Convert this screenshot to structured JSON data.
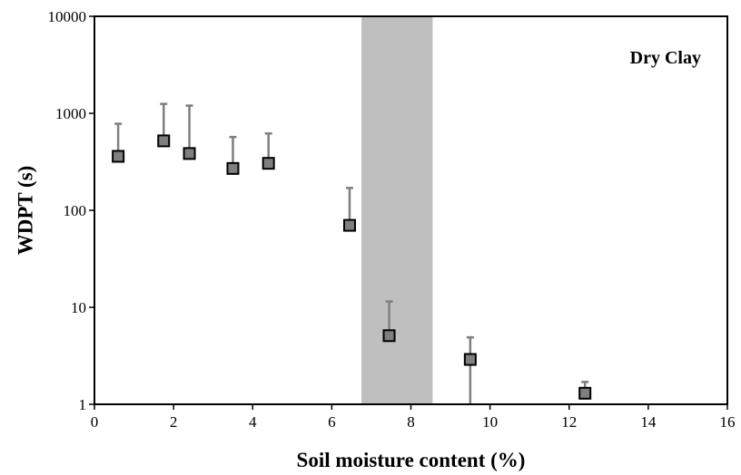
{
  "chart_data": {
    "type": "scatter",
    "title": "",
    "xlabel": "Soil moisture content (%)",
    "ylabel": "WDPT (s)",
    "xlim": [
      0,
      16
    ],
    "ylim": [
      1,
      10000
    ],
    "yscale": "log",
    "x_ticks": [
      0,
      2,
      4,
      6,
      8,
      10,
      12,
      14,
      16
    ],
    "x_tick_labels": [
      "0",
      "2",
      "4",
      "6",
      "8",
      "10",
      "12",
      "14",
      "16"
    ],
    "y_ticks": [
      1,
      10,
      100,
      1000,
      10000
    ],
    "y_tick_labels": [
      "1",
      "10",
      "100",
      "1000",
      "10000"
    ],
    "grid": false,
    "legend": false,
    "annotation": "Dry Clay",
    "shaded_region": {
      "x_start": 6.75,
      "x_end": 8.55,
      "color": "#bfbfbf"
    },
    "marker_color": "#7f7f7f",
    "marker_edge_color": "#000000",
    "errorbar_color": "#7f7f7f",
    "points": [
      {
        "x": 0.6,
        "y": 360,
        "y_upper": 780
      },
      {
        "x": 1.75,
        "y": 520,
        "y_upper": 1250
      },
      {
        "x": 2.4,
        "y": 385,
        "y_upper": 1200
      },
      {
        "x": 3.5,
        "y": 270,
        "y_upper": 570
      },
      {
        "x": 4.4,
        "y": 305,
        "y_upper": 620
      },
      {
        "x": 6.45,
        "y": 70,
        "y_upper": 170
      },
      {
        "x": 7.45,
        "y": 5.1,
        "y_upper": 11.5
      },
      {
        "x": 9.5,
        "y": 2.9,
        "y_upper": 4.9,
        "y_lower": 1
      },
      {
        "x": 12.4,
        "y": 1.3,
        "y_upper": 1.7
      }
    ]
  }
}
